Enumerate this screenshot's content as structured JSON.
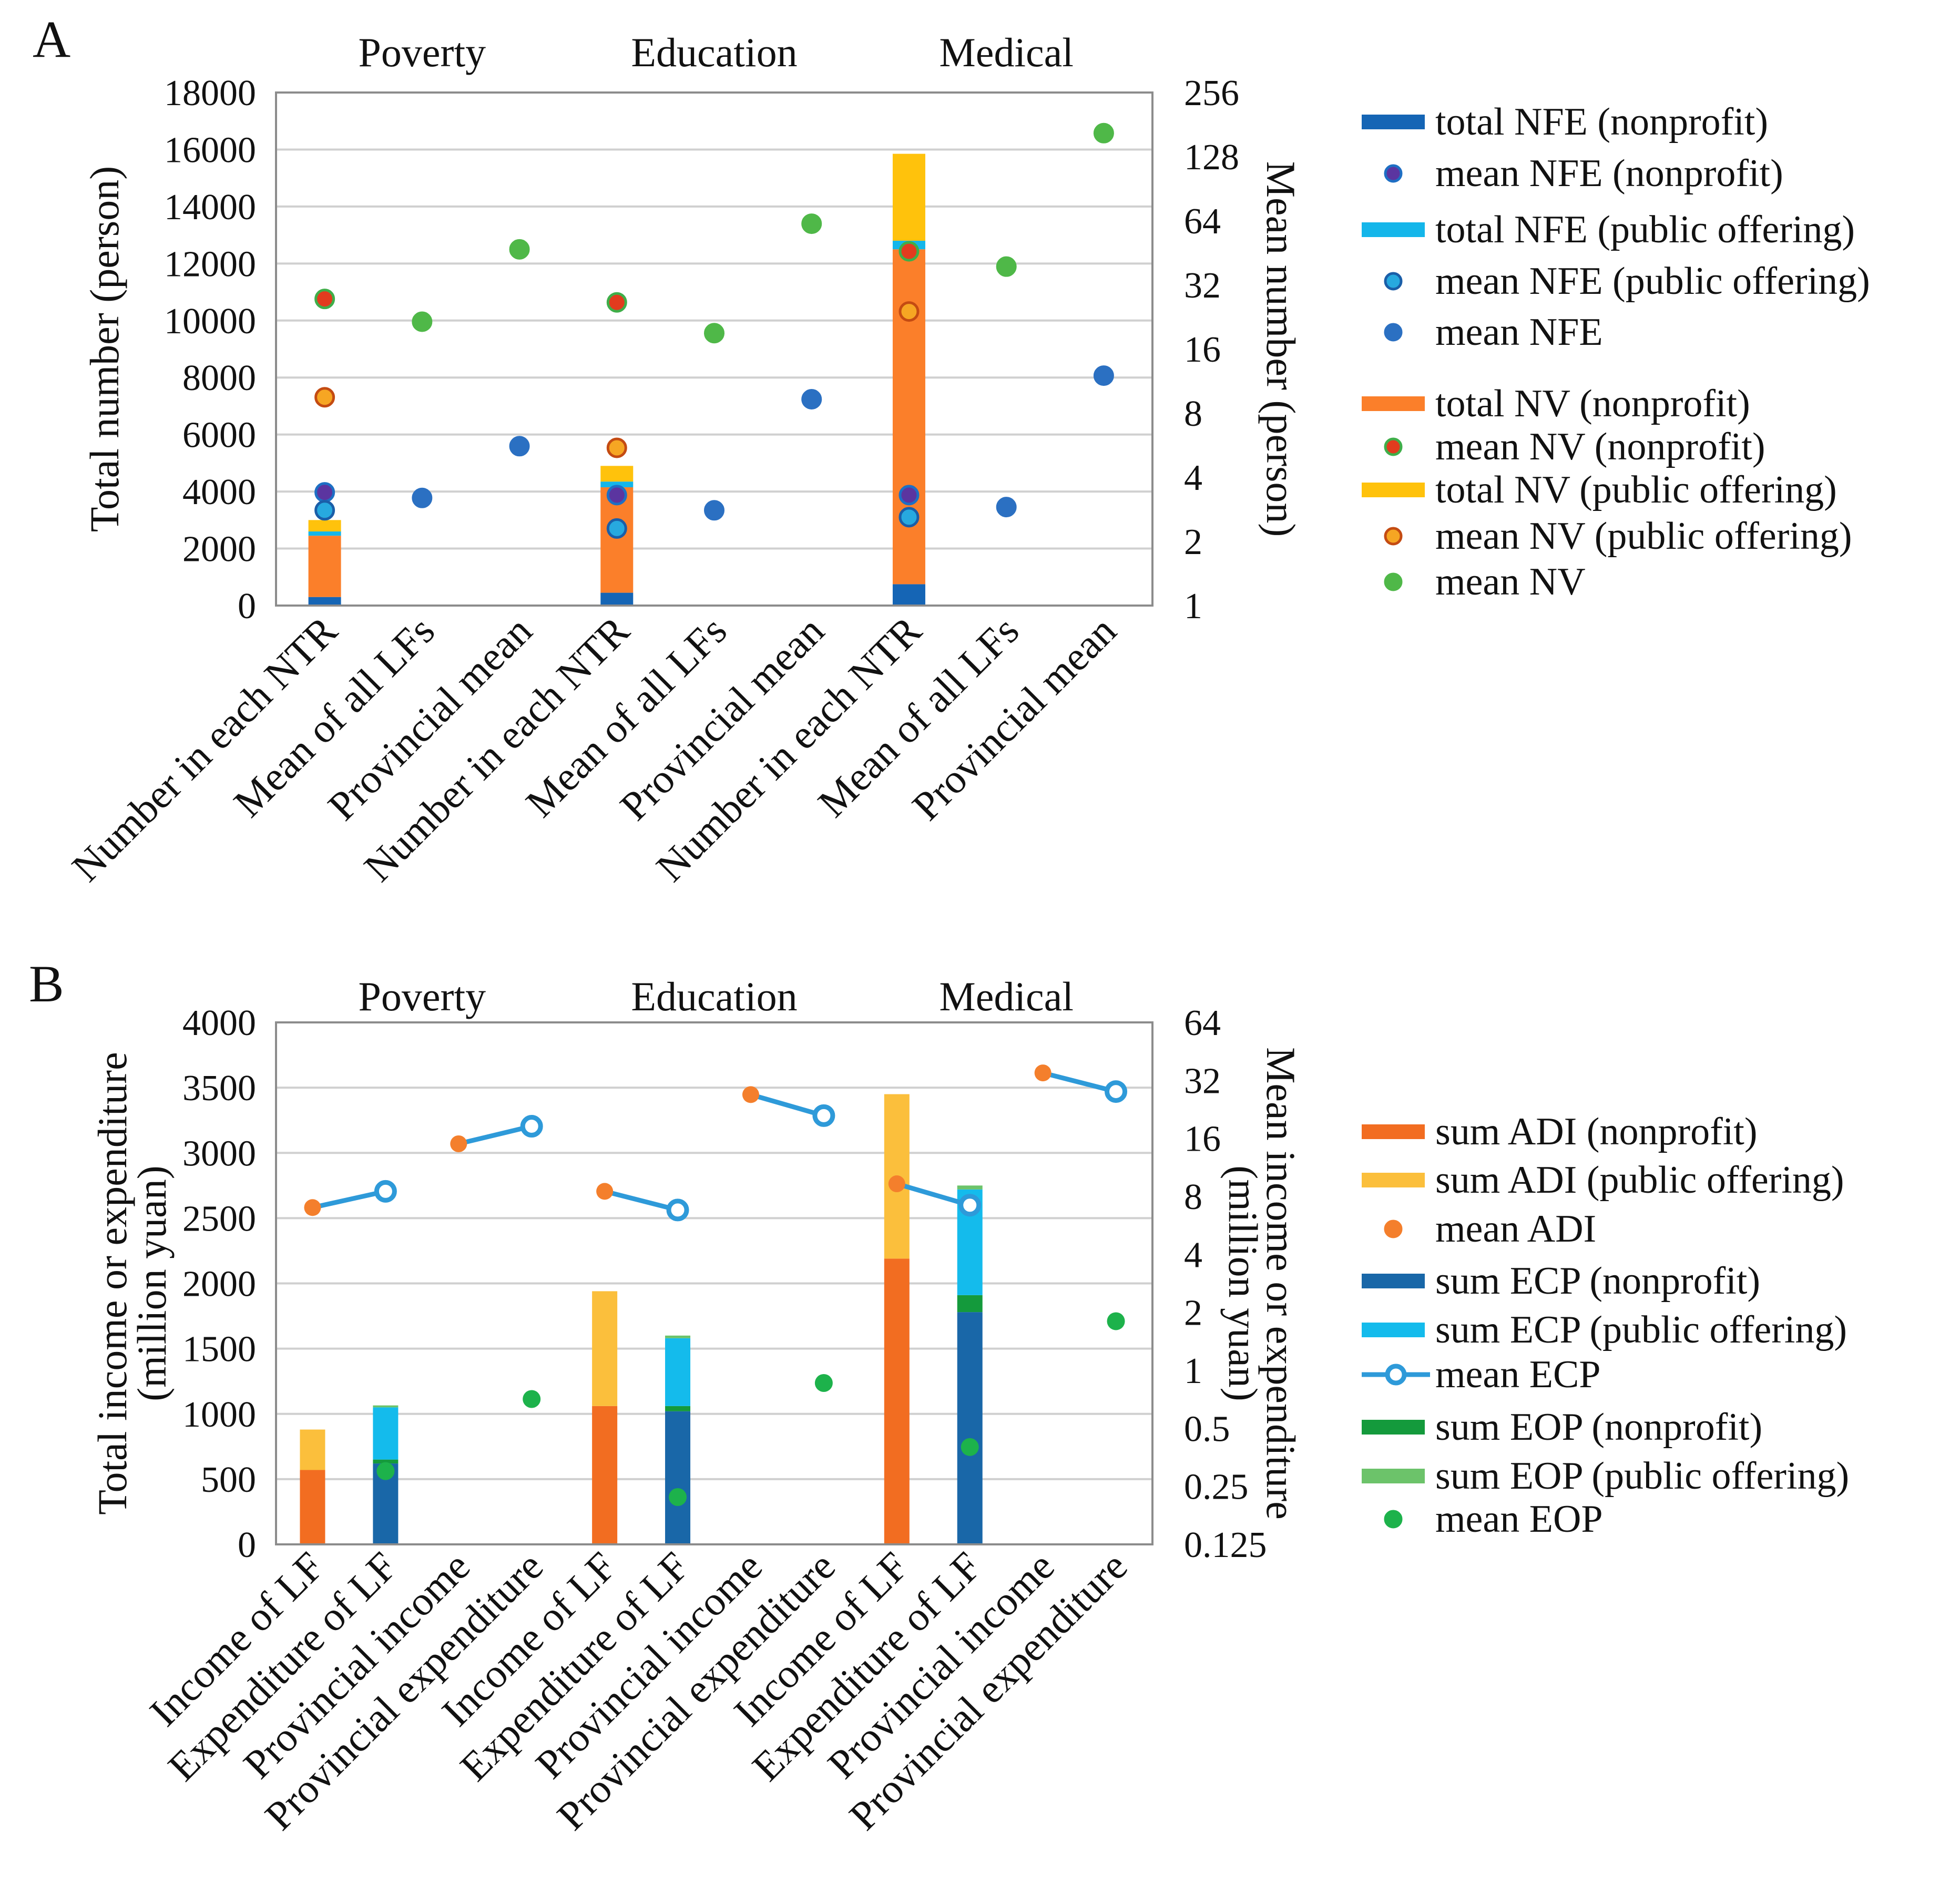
{
  "chart_data": [
    {
      "panel": "A",
      "type": "bar",
      "groups": [
        "Poverty",
        "Education",
        "Medical"
      ],
      "categories": [
        "Number in each NTR",
        "Mean of all LFs",
        "Provincial mean"
      ],
      "ylabel": "Total number (person)",
      "ylim": [
        0,
        18000
      ],
      "yticks": [
        "0",
        "2000",
        "4000",
        "6000",
        "8000",
        "10000",
        "12000",
        "14000",
        "16000",
        "18000"
      ],
      "y2label": "Mean number (person)",
      "y2scale": "log2",
      "y2lim": [
        1,
        256
      ],
      "y2ticks": [
        "1",
        "2",
        "4",
        "8",
        "16",
        "32",
        "64",
        "128",
        "256"
      ],
      "stacked_series": [
        {
          "name": "total NFE (nonprofit)",
          "color": "#1565b5",
          "values": [
            300,
            450,
            750
          ]
        },
        {
          "name": "total NV (nonprofit)",
          "color": "#fb7f2a",
          "values": [
            2150,
            3700,
            11750
          ]
        },
        {
          "name": "total NFE (public offering)",
          "color": "#14b6ea",
          "values": [
            150,
            200,
            300
          ]
        },
        {
          "name": "total NV (public offering)",
          "color": "#ffc20c",
          "values": [
            400,
            550,
            3050
          ]
        }
      ],
      "mean_points": [
        {
          "name": "mean NFE (nonprofit)",
          "fill": "#5b35a0",
          "stroke": "#1e6fc4",
          "points": [
            {
              "group": 0,
              "cat": 0,
              "y": 3.4
            },
            {
              "group": 1,
              "cat": 0,
              "y": 3.3
            },
            {
              "group": 2,
              "cat": 0,
              "y": 3.3
            }
          ]
        },
        {
          "name": "mean NFE (public offering)",
          "fill": "#27a9df",
          "stroke": "#1a5ea8",
          "points": [
            {
              "group": 0,
              "cat": 0,
              "y": 2.8
            },
            {
              "group": 1,
              "cat": 0,
              "y": 2.3
            },
            {
              "group": 2,
              "cat": 0,
              "y": 2.6
            }
          ]
        },
        {
          "name": "mean NFE",
          "fill": "#2b70c2",
          "stroke": "#2b70c2",
          "points": [
            {
              "group": 0,
              "cat": 1,
              "y": 3.2
            },
            {
              "group": 0,
              "cat": 2,
              "y": 5.6
            },
            {
              "group": 1,
              "cat": 1,
              "y": 2.8
            },
            {
              "group": 1,
              "cat": 2,
              "y": 9.3
            },
            {
              "group": 2,
              "cat": 1,
              "y": 2.9
            },
            {
              "group": 2,
              "cat": 2,
              "y": 12
            }
          ]
        },
        {
          "name": "mean NV (nonprofit)",
          "fill": "#e23b1e",
          "stroke": "#3fae49",
          "points": [
            {
              "group": 0,
              "cat": 0,
              "y": 27.5
            },
            {
              "group": 1,
              "cat": 0,
              "y": 26.5
            },
            {
              "group": 2,
              "cat": 0,
              "y": 46
            }
          ]
        },
        {
          "name": "mean NV (public offering)",
          "fill": "#f6a623",
          "stroke": "#c44b12",
          "points": [
            {
              "group": 0,
              "cat": 0,
              "y": 9.5
            },
            {
              "group": 1,
              "cat": 0,
              "y": 5.5
            },
            {
              "group": 2,
              "cat": 0,
              "y": 24
            }
          ]
        },
        {
          "name": "mean NV",
          "fill": "#4fb848",
          "stroke": "#4fb848",
          "points": [
            {
              "group": 0,
              "cat": 1,
              "y": 21.5
            },
            {
              "group": 0,
              "cat": 2,
              "y": 47
            },
            {
              "group": 1,
              "cat": 1,
              "y": 19
            },
            {
              "group": 1,
              "cat": 2,
              "y": 62
            },
            {
              "group": 2,
              "cat": 1,
              "y": 39
            },
            {
              "group": 2,
              "cat": 2,
              "y": 165
            }
          ]
        }
      ],
      "legend": [
        {
          "label": "total NFE (nonprofit)",
          "kind": "bar",
          "color": "#1565b5"
        },
        {
          "label": "mean NFE (nonprofit)",
          "kind": "dot",
          "fill": "#5b35a0",
          "stroke": "#1e6fc4"
        },
        {
          "label": "total NFE (public offering)",
          "kind": "bar",
          "color": "#14b6ea"
        },
        {
          "label": "mean NFE (public offering)",
          "kind": "dot",
          "fill": "#27a9df",
          "stroke": "#1a5ea8"
        },
        {
          "label": "mean NFE",
          "kind": "dot",
          "fill": "#2b70c2",
          "stroke": "#2b70c2"
        },
        {
          "label": "total NV (nonprofit)",
          "kind": "bar",
          "color": "#fb7f2a"
        },
        {
          "label": "mean NV (nonprofit)",
          "kind": "dot",
          "fill": "#e23b1e",
          "stroke": "#3fae49"
        },
        {
          "label": "total NV (public offering)",
          "kind": "bar",
          "color": "#ffc20c"
        },
        {
          "label": "mean NV (public offering)",
          "kind": "dot",
          "fill": "#f6a623",
          "stroke": "#c44b12"
        },
        {
          "label": "mean NV",
          "kind": "dot",
          "fill": "#4fb848",
          "stroke": "#4fb848"
        }
      ]
    },
    {
      "panel": "B",
      "type": "bar",
      "groups": [
        "Poverty",
        "Education",
        "Medical"
      ],
      "categories": [
        "Income of LF",
        "Expenditure of LF",
        "Provincial income",
        "Provincial expenditure"
      ],
      "ylabel": "Total income or expenditure",
      "ylabel2": "(million yuan)",
      "ylim": [
        0,
        4000
      ],
      "yticks": [
        "0",
        "500",
        "1000",
        "1500",
        "2000",
        "2500",
        "3000",
        "3500",
        "4000"
      ],
      "y2label": "Mean income or expenditure",
      "y2label2": "(million yuan)",
      "y2scale": "log2",
      "y2lim": [
        0.125,
        64
      ],
      "y2ticks": [
        "0.125",
        "0.25",
        "0.5",
        "1",
        "2",
        "4",
        "8",
        "16",
        "32",
        "64"
      ],
      "stacks": [
        {
          "group": 0,
          "cat": 0,
          "segments": [
            {
              "series": "sum ADI (nonprofit)",
              "value": 570
            },
            {
              "series": "sum ADI (public offering)",
              "value": 310
            }
          ]
        },
        {
          "group": 0,
          "cat": 1,
          "segments": [
            {
              "series": "sum ECP (nonprofit)",
              "value": 620
            },
            {
              "series": "sum EOP (nonprofit)",
              "value": 30
            },
            {
              "series": "sum ECP (public offering)",
              "value": 400
            },
            {
              "series": "sum EOP (public offering)",
              "value": 15
            }
          ]
        },
        {
          "group": 1,
          "cat": 0,
          "segments": [
            {
              "series": "sum ADI (nonprofit)",
              "value": 1060
            },
            {
              "series": "sum ADI (public offering)",
              "value": 880
            }
          ]
        },
        {
          "group": 1,
          "cat": 1,
          "segments": [
            {
              "series": "sum ECP (nonprofit)",
              "value": 1020
            },
            {
              "series": "sum EOP (nonprofit)",
              "value": 40
            },
            {
              "series": "sum ECP (public offering)",
              "value": 520
            },
            {
              "series": "sum EOP (public offering)",
              "value": 20
            }
          ]
        },
        {
          "group": 2,
          "cat": 0,
          "segments": [
            {
              "series": "sum ADI (nonprofit)",
              "value": 2190
            },
            {
              "series": "sum ADI (public offering)",
              "value": 1260
            }
          ]
        },
        {
          "group": 2,
          "cat": 1,
          "segments": [
            {
              "series": "sum ECP (nonprofit)",
              "value": 1780
            },
            {
              "series": "sum EOP (nonprofit)",
              "value": 130
            },
            {
              "series": "sum ECP (public offering)",
              "value": 810
            },
            {
              "series": "sum EOP (public offering)",
              "value": 30
            }
          ]
        }
      ],
      "series_colors": {
        "sum ADI (nonprofit)": "#f26d21",
        "sum ADI (public offering)": "#fbbf3c",
        "sum ECP (nonprofit)": "#1967a8",
        "sum ECP (public offering)": "#14bbec",
        "sum EOP (nonprofit)": "#149a3c",
        "sum EOP (public offering)": "#6cc36a"
      },
      "mean_pairs": [
        {
          "group": 0,
          "income_cat": 0,
          "expenditure_cat": 1,
          "adi": 7,
          "ecp": 8.5
        },
        {
          "group": 0,
          "income_cat": 2,
          "expenditure_cat": 3,
          "adi": 15,
          "ecp": 18.5
        },
        {
          "group": 1,
          "income_cat": 0,
          "expenditure_cat": 1,
          "adi": 8.5,
          "ecp": 6.8
        },
        {
          "group": 1,
          "income_cat": 2,
          "expenditure_cat": 3,
          "adi": 27,
          "ecp": 21
        },
        {
          "group": 2,
          "income_cat": 0,
          "expenditure_cat": 1,
          "adi": 9.3,
          "ecp": 7.2
        },
        {
          "group": 2,
          "income_cat": 2,
          "expenditure_cat": 3,
          "adi": 35,
          "ecp": 28
        }
      ],
      "mean_eop": [
        {
          "group": 0,
          "cat": 1,
          "y": 0.3
        },
        {
          "group": 0,
          "cat": 3,
          "y": 0.71
        },
        {
          "group": 1,
          "cat": 1,
          "y": 0.22
        },
        {
          "group": 1,
          "cat": 3,
          "y": 0.86
        },
        {
          "group": 2,
          "cat": 1,
          "y": 0.4
        },
        {
          "group": 2,
          "cat": 3,
          "y": 1.8
        }
      ],
      "mean_colors": {
        "mean ADI": "#f47f2c",
        "mean ECP": "#2e9ad9",
        "mean EOP": "#1db24b"
      },
      "legend": [
        {
          "label": "sum ADI (nonprofit)",
          "kind": "bar",
          "color": "#f26d21"
        },
        {
          "label": "sum ADI (public offering)",
          "kind": "bar",
          "color": "#fbbf3c"
        },
        {
          "label": "mean ADI",
          "kind": "dot",
          "fill": "#f47f2c",
          "stroke": "#f47f2c"
        },
        {
          "label": "sum ECP (nonprofit)",
          "kind": "bar",
          "color": "#1967a8"
        },
        {
          "label": "sum ECP (public offering)",
          "kind": "bar",
          "color": "#14bbec"
        },
        {
          "label": "mean ECP",
          "kind": "line",
          "color": "#2e9ad9"
        },
        {
          "label": "sum EOP (nonprofit)",
          "kind": "bar",
          "color": "#149a3c"
        },
        {
          "label": "sum EOP (public offering)",
          "kind": "bar",
          "color": "#6cc36a"
        },
        {
          "label": "mean EOP",
          "kind": "dot",
          "fill": "#1db24b",
          "stroke": "#1db24b"
        }
      ]
    }
  ]
}
